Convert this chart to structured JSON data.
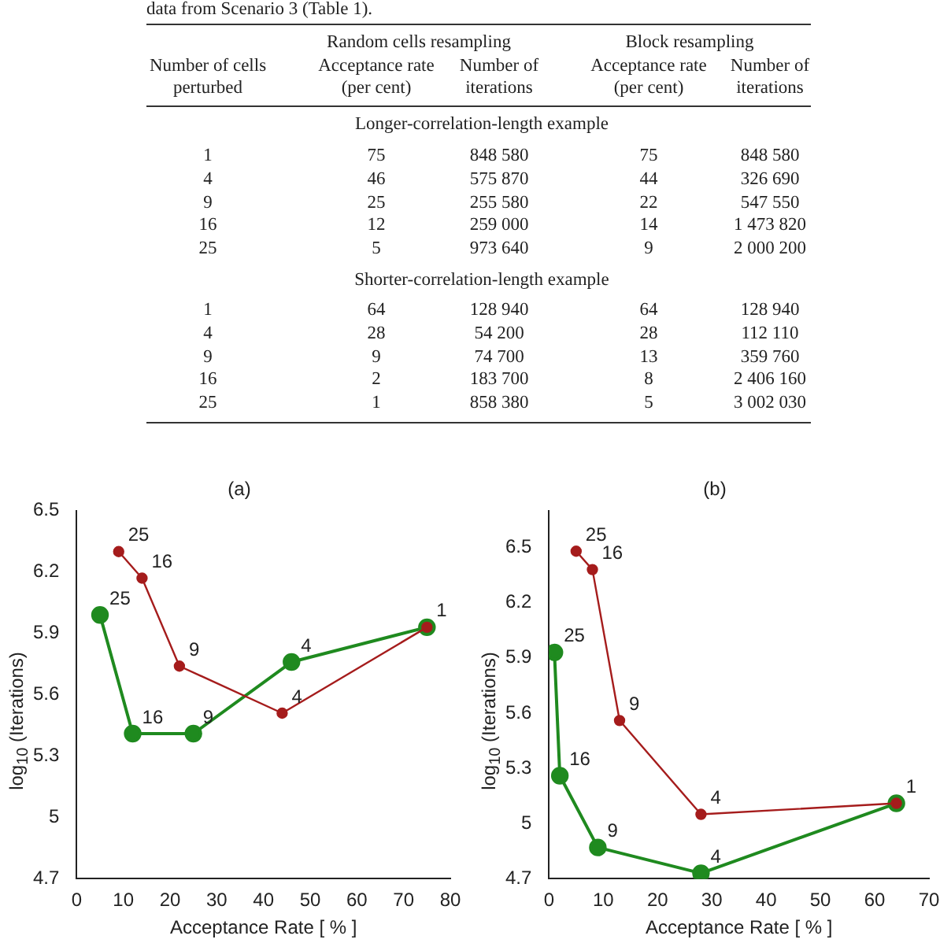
{
  "chart_data": [
    {
      "type": "other",
      "title": "data from Scenario 3 (Table 1).",
      "annotations": [
        "Random cells resampling",
        "Block resampling",
        "Number of cells perturbed",
        "Acceptance rate (per cent)",
        "Number of iterations",
        "Acceptance rate (per cent)",
        "Number of iterations",
        "Longer-correlation-length example",
        "1",
        "75",
        "848 580",
        "75",
        "848 580",
        "4",
        "46",
        "575 870",
        "44",
        "326 690",
        "9",
        "25",
        "255 580",
        "22",
        "547 550",
        "16",
        "12",
        "259 000",
        "14",
        "1 473 820",
        "25",
        "5",
        "973 640",
        "9",
        "2 000 200",
        "Shorter-correlation-length example",
        "1",
        "64",
        "128 940",
        "64",
        "128 940",
        "4",
        "28",
        "54 200",
        "28",
        "112 110",
        "9",
        "9",
        "74 700",
        "13",
        "359 760",
        "16",
        "2",
        "183 700",
        "8",
        "2 406 160",
        "25",
        "1",
        "858 380",
        "5",
        "3 002 030"
      ]
    },
    {
      "type": "line",
      "title": "(a)",
      "xlabel": "Acceptance Rate [ % ]",
      "ylabel": "log$_{10}$ (Iterations)",
      "xlim": [
        0,
        80
      ],
      "xticks": [
        0,
        10,
        20,
        30,
        40,
        50,
        60,
        70,
        80
      ],
      "ylim": [
        4.7,
        6.5
      ],
      "yticks": [
        4.7,
        5,
        5.3,
        5.6,
        5.9,
        6.2,
        6.5
      ],
      "marker": "circle",
      "series": [
        {
          "color": "#a51c1c",
          "x": [
            9,
            14,
            22,
            44,
            75
          ],
          "values": [
            6.3,
            6.17,
            5.74,
            5.51,
            5.93
          ]
        },
        {
          "color": "#1f8a1f",
          "x": [
            5,
            12,
            25,
            46,
            75
          ],
          "values": [
            5.99,
            5.41,
            5.41,
            5.76,
            5.93
          ]
        }
      ],
      "annotations": [
        {
          "text": "25",
          "x": 9,
          "y": 6.3
        },
        {
          "text": "16",
          "x": 14,
          "y": 6.17
        },
        {
          "text": "9",
          "x": 22,
          "y": 5.74
        },
        {
          "text": "4",
          "x": 44,
          "y": 5.51
        },
        {
          "text": "1",
          "x": 75,
          "y": 5.93
        },
        {
          "text": "25",
          "x": 5,
          "y": 5.99
        },
        {
          "text": "16",
          "x": 12,
          "y": 5.41
        },
        {
          "text": "9",
          "x": 25,
          "y": 5.41
        },
        {
          "text": "4",
          "x": 46,
          "y": 5.76
        }
      ]
    },
    {
      "type": "line",
      "title": "(b)",
      "xlabel": "Acceptance Rate [ % ]",
      "ylabel": "log$_{10}$ (Iterations)",
      "xlim": [
        0,
        70
      ],
      "xticks": [
        0,
        10,
        20,
        30,
        40,
        50,
        60,
        70
      ],
      "ylim": [
        4.7,
        6.7
      ],
      "yticks": [
        4.7,
        5,
        5.3,
        5.6,
        5.9,
        6.2,
        6.5
      ],
      "marker": "circle",
      "series": [
        {
          "color": "#a51c1c",
          "x": [
            5,
            8,
            13,
            28,
            64
          ],
          "values": [
            6.48,
            6.38,
            5.56,
            5.05,
            5.11
          ]
        },
        {
          "color": "#1f8a1f",
          "x": [
            1,
            2,
            9,
            28,
            64
          ],
          "values": [
            5.93,
            5.26,
            4.87,
            4.73,
            5.11
          ]
        }
      ],
      "annotations": [
        {
          "text": "25",
          "x": 5,
          "y": 6.48
        },
        {
          "text": "16",
          "x": 8,
          "y": 6.38
        },
        {
          "text": "9",
          "x": 13,
          "y": 5.56
        },
        {
          "text": "4",
          "x": 28,
          "y": 5.05
        },
        {
          "text": "1",
          "x": 64,
          "y": 5.11
        },
        {
          "text": "25",
          "x": 1,
          "y": 5.93
        },
        {
          "text": "16",
          "x": 2,
          "y": 5.26
        },
        {
          "text": "9",
          "x": 9,
          "y": 4.87
        },
        {
          "text": "4",
          "x": 28,
          "y": 4.73
        }
      ]
    }
  ]
}
